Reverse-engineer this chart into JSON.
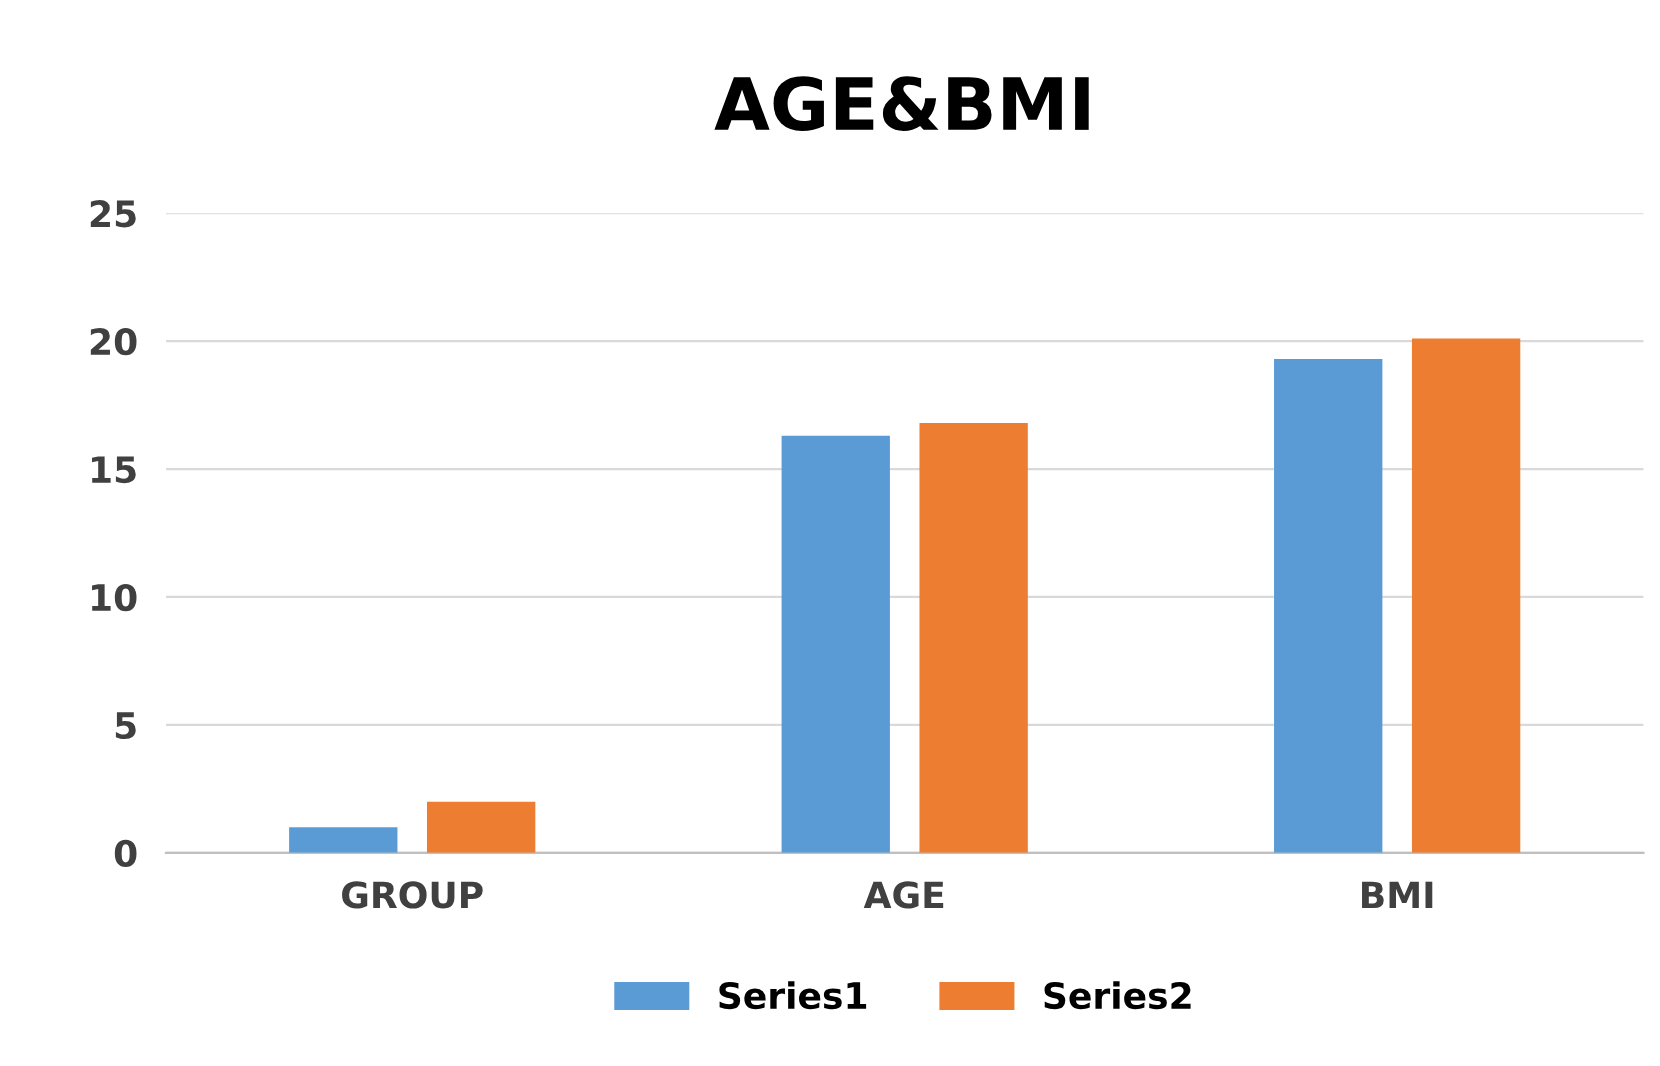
{
  "chart_data": {
    "type": "bar",
    "title": "AGE&BMI",
    "categories": [
      "GROUP",
      "AGE",
      "BMI"
    ],
    "series": [
      {
        "name": "Series1",
        "color": "#5b9bd5",
        "values": [
          1,
          16.3,
          19.3
        ]
      },
      {
        "name": "Series2",
        "color": "#ed7d31",
        "values": [
          2,
          16.8,
          20.1
        ]
      }
    ],
    "ylim": [
      0,
      25
    ],
    "yticks": [
      0,
      5,
      10,
      15,
      20,
      25
    ],
    "grid": "y",
    "legend": "bottom"
  }
}
